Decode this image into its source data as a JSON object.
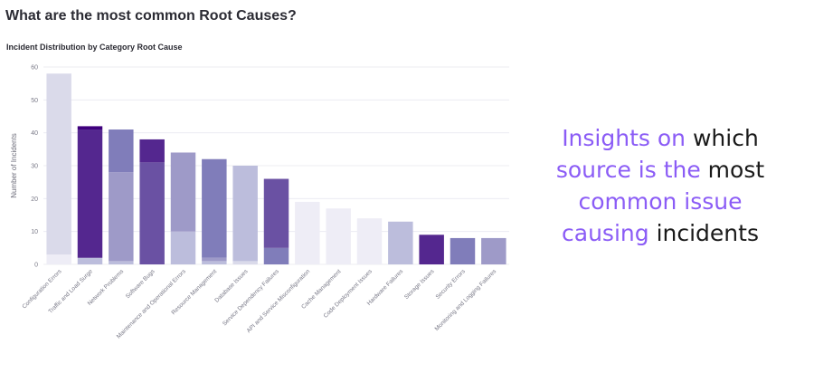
{
  "page": {
    "title": "What are the most common Root Causes?"
  },
  "chart_data": {
    "type": "bar",
    "title": "Incident Distribution by Category Root Cause",
    "xlabel": "",
    "ylabel": "Number of Incidents",
    "ylim": [
      0,
      60
    ],
    "yticks": [
      0,
      10,
      20,
      30,
      40,
      50,
      60
    ],
    "grid": true,
    "stacked": true,
    "categories": [
      "Configuration Errors",
      "Traffic and Load Surge",
      "Network Problems",
      "Software Bugs",
      "Maintenance and Operational Errors",
      "Resource Management",
      "Database Issues",
      "Service Dependency Failures",
      "API and Service Misconfiguration",
      "Cache Management",
      "Code Deployment Issues",
      "Hardware Failures",
      "Storage Issues",
      "Security Errors",
      "Monitoring and Logging Failures"
    ],
    "stacks": [
      [
        {
          "value": 3,
          "color": "#eeedf6"
        },
        {
          "value": 55,
          "color": "#dadaea"
        }
      ],
      [
        {
          "value": 2,
          "color": "#bcbddc"
        },
        {
          "value": 39,
          "color": "#54278f"
        },
        {
          "value": 1,
          "color": "#3f007d"
        }
      ],
      [
        {
          "value": 1,
          "color": "#bcbddc"
        },
        {
          "value": 27,
          "color": "#9e9ac8"
        },
        {
          "value": 13,
          "color": "#807dba"
        }
      ],
      [
        {
          "value": 31,
          "color": "#6a51a3"
        },
        {
          "value": 7,
          "color": "#54278f"
        }
      ],
      [
        {
          "value": 10,
          "color": "#bcbddc"
        },
        {
          "value": 24,
          "color": "#9e9ac8"
        }
      ],
      [
        {
          "value": 1,
          "color": "#bcbddc"
        },
        {
          "value": 1,
          "color": "#9e9ac8"
        },
        {
          "value": 30,
          "color": "#807dba"
        }
      ],
      [
        {
          "value": 1,
          "color": "#dadaea"
        },
        {
          "value": 29,
          "color": "#bcbddc"
        }
      ],
      [
        {
          "value": 5,
          "color": "#807dba"
        },
        {
          "value": 21,
          "color": "#6a51a3"
        }
      ],
      [
        {
          "value": 19,
          "color": "#eeedf6"
        }
      ],
      [
        {
          "value": 17,
          "color": "#eeedf6"
        }
      ],
      [
        {
          "value": 14,
          "color": "#eeedf6"
        }
      ],
      [
        {
          "value": 13,
          "color": "#bcbddc"
        }
      ],
      [
        {
          "value": 9,
          "color": "#54278f"
        }
      ],
      [
        {
          "value": 8,
          "color": "#807dba"
        }
      ],
      [
        {
          "value": 8,
          "color": "#9e9ac8"
        }
      ]
    ]
  },
  "insight": {
    "line1_accent": "Insights on",
    "line1_rest": " which",
    "line2_accent": "source is the",
    "line2_rest": " most",
    "line3_accent": "common issue",
    "line4_accent": "causing",
    "line4_rest": " incidents",
    "accent_color": "#8b5cf6"
  }
}
